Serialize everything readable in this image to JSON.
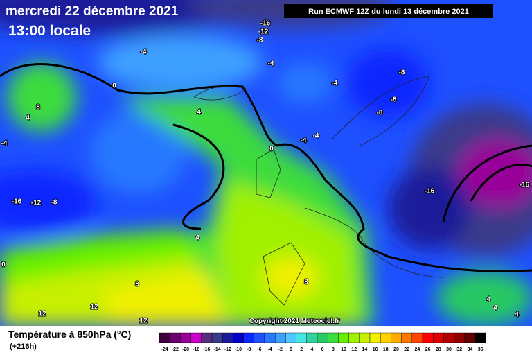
{
  "header": {
    "date": "mercredi 22 décembre 2021",
    "time": "13:00 locale",
    "run": "Run ECMWF 12Z du lundi 13 décembre 2021"
  },
  "map": {
    "contour_labels": [
      -16,
      -12,
      -8,
      -4,
      -4,
      0,
      -4,
      -8,
      -8,
      -8,
      8,
      4,
      4,
      -4,
      0,
      -4,
      -4,
      -16,
      -12,
      -8,
      -16,
      -16,
      4,
      0,
      8,
      8,
      12,
      12,
      12,
      4,
      4,
      4
    ]
  },
  "copyright": "Copyright 2021 Meteociel.fr",
  "legend": {
    "title": "Température à 850hPa (°C)",
    "lead_time": "(+216h)",
    "ticks": [
      -24,
      -22,
      -20,
      -18,
      -16,
      -14,
      -12,
      -10,
      -8,
      -6,
      -4,
      -2,
      0,
      2,
      4,
      6,
      8,
      10,
      12,
      14,
      16,
      18,
      20,
      22,
      24,
      26,
      28,
      30,
      32,
      34,
      36
    ],
    "colors": [
      "#3c003c",
      "#6a006a",
      "#990099",
      "#c800c8",
      "#5a2d7a",
      "#3a3a8a",
      "#1a1a9a",
      "#0000c8",
      "#0a28ff",
      "#1e50ff",
      "#2878ff",
      "#3ca0ff",
      "#50c8ff",
      "#46e6e6",
      "#32d2a0",
      "#28c864",
      "#3cdc3c",
      "#64f000",
      "#a0f000",
      "#c8f000",
      "#f0f000",
      "#ffd200",
      "#ffaa00",
      "#ff7800",
      "#ff4600",
      "#ff0000",
      "#dc0000",
      "#b40000",
      "#8c0000",
      "#600000",
      "#000000"
    ]
  }
}
